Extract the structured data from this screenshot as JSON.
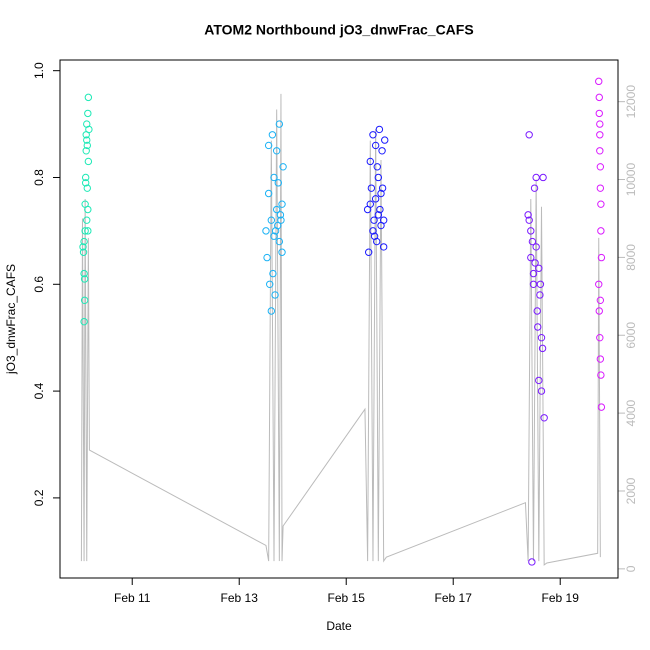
{
  "chart_data": {
    "type": "scatter",
    "title": "ATOM2 Northbound jO3_dnwFrac_CAFS",
    "xlabel": "Date",
    "ylabel": "jO3_dnwFrac_CAFS",
    "xlim": [
      9.65,
      20.08
    ],
    "xticks": [
      {
        "value": 11,
        "label": "Feb 11"
      },
      {
        "value": 13,
        "label": "Feb 13"
      },
      {
        "value": 15,
        "label": "Feb 15"
      },
      {
        "value": 17,
        "label": "Feb 17"
      },
      {
        "value": 19,
        "label": "Feb 19"
      }
    ],
    "ylim": [
      0.05,
      1.02
    ],
    "yticks": [
      0.2,
      0.4,
      0.6,
      0.8,
      {
        "value": 1,
        "label": "1.0"
      }
    ],
    "y2lim": [
      -235,
      13070
    ],
    "y2ticks": [
      0,
      2000,
      4000,
      6000,
      8000,
      10000,
      12000
    ],
    "y2color": "#bbbbbb",
    "series": [
      {
        "type": "line",
        "axis": "y2",
        "color": "#bbbbbb",
        "x": [
          10.05,
          10.07,
          10.1,
          10.12,
          10.15,
          10.18,
          10.2,
          13.5,
          13.55,
          13.6,
          13.65,
          13.7,
          13.75,
          13.78,
          13.8,
          13.82,
          15.35,
          15.4,
          15.45,
          15.5,
          15.55,
          15.6,
          15.65,
          15.7,
          15.75,
          18.35,
          18.4,
          18.45,
          18.5,
          18.55,
          18.6,
          18.65,
          18.7,
          18.75,
          19.7,
          19.72,
          19.75
        ],
        "values": [
          200,
          9000,
          200,
          9500,
          200,
          8500,
          3050,
          600,
          200,
          11000,
          200,
          11800,
          200,
          12200,
          200,
          1100,
          4100,
          200,
          11000,
          200,
          11300,
          200,
          10500,
          200,
          300,
          1700,
          200,
          9500,
          200,
          10000,
          200,
          9300,
          100,
          150,
          400,
          8500,
          300
        ]
      },
      {
        "color": "#1de9b6",
        "x": [
          10.08,
          10.09,
          10.1,
          10.1,
          10.11,
          10.12,
          10.12,
          10.13,
          10.14,
          10.14,
          10.15,
          10.15,
          10.16,
          10.16,
          10.17,
          10.17,
          10.18,
          10.18,
          10.1,
          10.11,
          10.13,
          10.15,
          10.17,
          10.19
        ],
        "values": [
          0.67,
          0.66,
          0.62,
          0.53,
          0.57,
          0.7,
          0.75,
          0.8,
          0.85,
          0.88,
          0.72,
          0.9,
          0.78,
          0.86,
          0.92,
          0.74,
          0.95,
          0.83,
          0.68,
          0.61,
          0.79,
          0.87,
          0.7,
          0.89
        ]
      },
      {
        "color": "#1ab2f5",
        "x": [
          13.5,
          13.52,
          13.55,
          13.57,
          13.6,
          13.6,
          13.62,
          13.65,
          13.65,
          13.67,
          13.7,
          13.7,
          13.72,
          13.75,
          13.75,
          13.77,
          13.8,
          13.8,
          13.82,
          13.55,
          13.63,
          13.68,
          13.73,
          13.78
        ],
        "values": [
          0.7,
          0.65,
          0.86,
          0.6,
          0.72,
          0.55,
          0.88,
          0.69,
          0.8,
          0.58,
          0.74,
          0.85,
          0.71,
          0.68,
          0.9,
          0.73,
          0.75,
          0.66,
          0.82,
          0.77,
          0.62,
          0.7,
          0.79,
          0.72
        ]
      },
      {
        "color": "#1a1aff",
        "x": [
          15.4,
          15.42,
          15.45,
          15.47,
          15.5,
          15.5,
          15.52,
          15.55,
          15.55,
          15.57,
          15.6,
          15.6,
          15.62,
          15.65,
          15.65,
          15.67,
          15.7,
          15.7,
          15.72,
          15.45,
          15.53,
          15.58,
          15.63,
          15.68
        ],
        "values": [
          0.74,
          0.66,
          0.83,
          0.78,
          0.88,
          0.7,
          0.72,
          0.76,
          0.86,
          0.68,
          0.73,
          0.8,
          0.89,
          0.71,
          0.77,
          0.85,
          0.72,
          0.67,
          0.87,
          0.75,
          0.69,
          0.82,
          0.74,
          0.78
        ]
      },
      {
        "color": "#7a1aff",
        "x": [
          18.4,
          18.42,
          18.45,
          18.45,
          18.47,
          18.5,
          18.5,
          18.52,
          18.55,
          18.55,
          18.57,
          18.6,
          18.6,
          18.62,
          18.65,
          18.65,
          18.67,
          18.7,
          18.42,
          18.48,
          18.53,
          18.58,
          18.63,
          18.68
        ],
        "values": [
          0.73,
          0.88,
          0.7,
          0.65,
          0.08,
          0.62,
          0.6,
          0.78,
          0.8,
          0.67,
          0.55,
          0.42,
          0.63,
          0.58,
          0.5,
          0.4,
          0.48,
          0.35,
          0.72,
          0.68,
          0.64,
          0.52,
          0.6,
          0.8
        ]
      },
      {
        "color": "#d91aff",
        "x": [
          19.72,
          19.73,
          19.73,
          19.74,
          19.74,
          19.75,
          19.75,
          19.76,
          19.76,
          19.77,
          19.72,
          19.73,
          19.74,
          19.75,
          19.76,
          19.77,
          19.74,
          19.75
        ],
        "values": [
          0.98,
          0.95,
          0.92,
          0.88,
          0.85,
          0.82,
          0.78,
          0.75,
          0.7,
          0.65,
          0.6,
          0.55,
          0.5,
          0.46,
          0.43,
          0.37,
          0.9,
          0.57
        ]
      }
    ]
  }
}
